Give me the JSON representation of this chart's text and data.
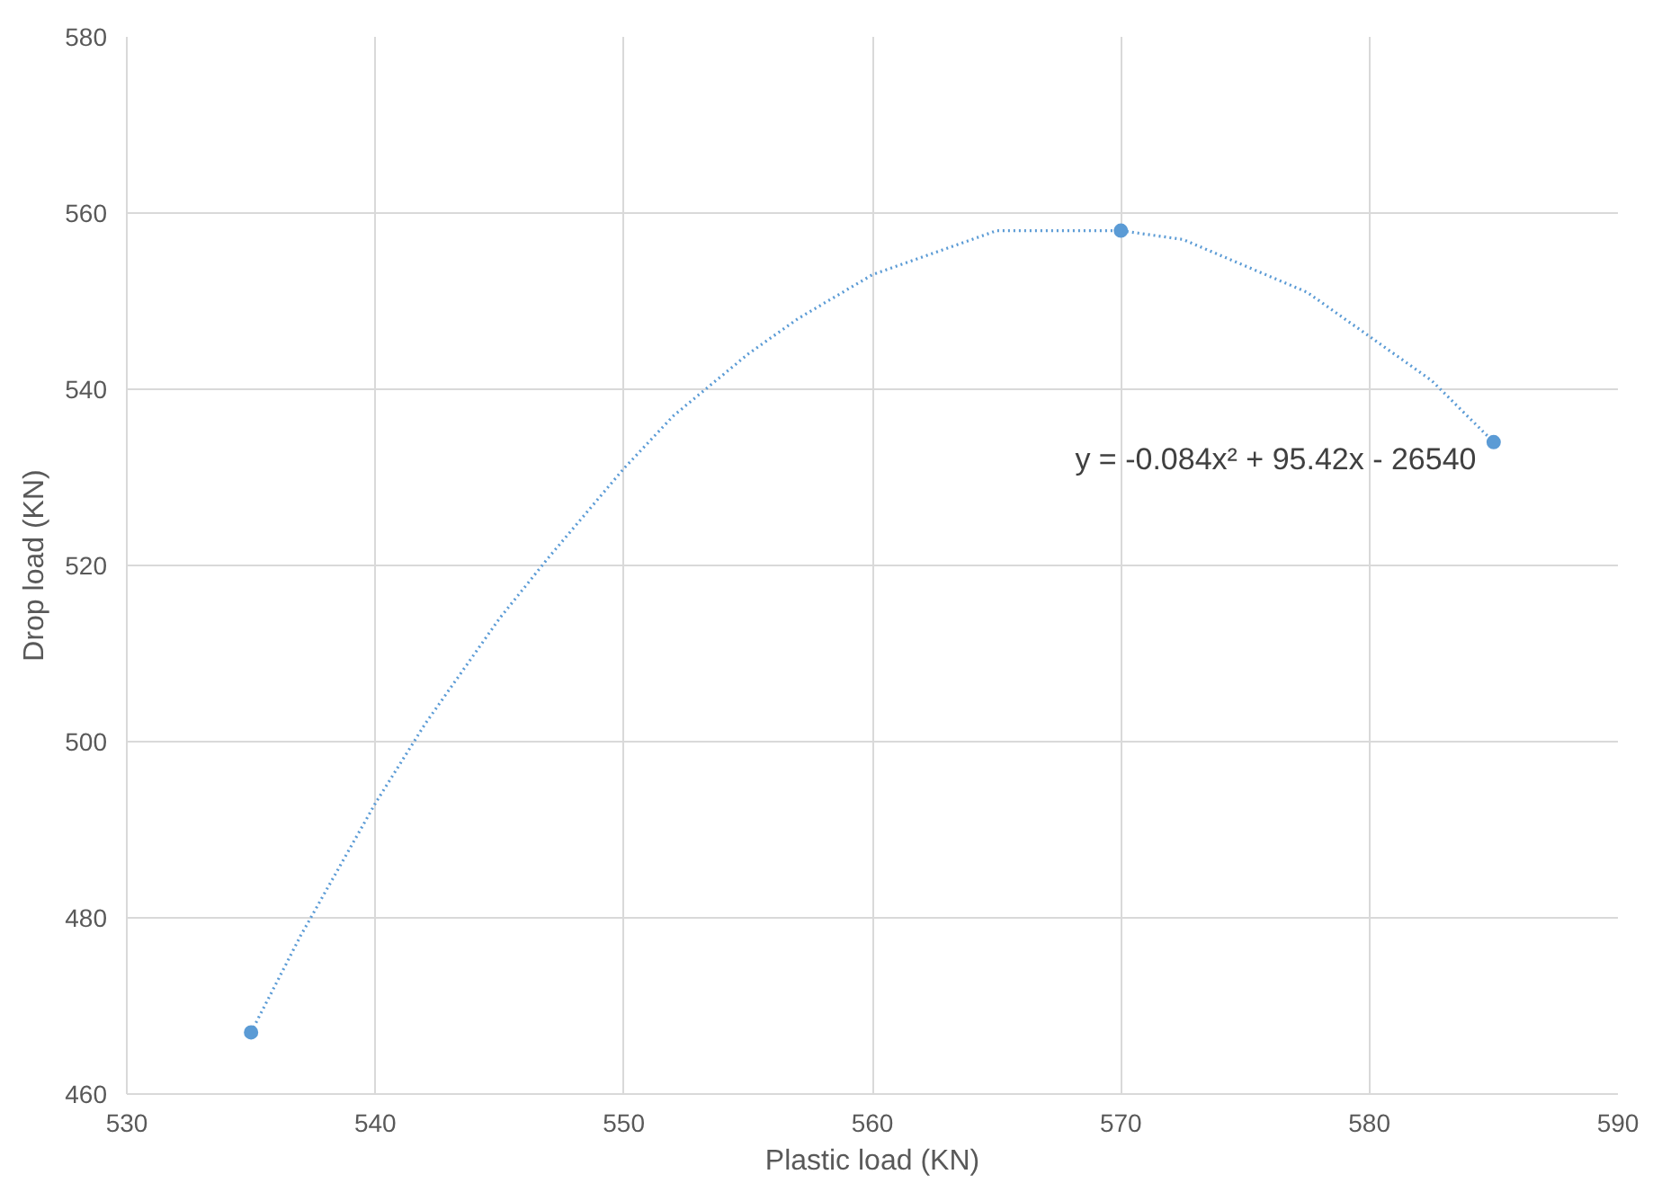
{
  "chart_data": {
    "type": "scatter",
    "xlabel": "Plastic load (KN)",
    "ylabel": "Drop load (KN)",
    "series": [
      {
        "color": "#5b9bd5",
        "x": [
          535,
          570,
          585
        ],
        "values": [
          467,
          558,
          534
        ],
        "marker": "circle"
      },
      {
        "type": "line",
        "color": "#5b9bd5",
        "line_style": "dotted",
        "marker": "none",
        "x": [
          535,
          537,
          540,
          542,
          545,
          547,
          550,
          552,
          555,
          557,
          560,
          562,
          565,
          568,
          570,
          572.5,
          575,
          577.5,
          580,
          582.5,
          585
        ],
        "values": [
          467,
          478,
          493,
          502,
          514,
          521,
          531,
          537,
          544,
          548,
          553,
          555,
          558,
          558,
          558,
          557,
          554,
          551,
          546,
          541,
          534
        ]
      }
    ],
    "annotations": [
      "y = -0.084x² + 95.42x - 26540"
    ],
    "xlim": [
      530,
      590
    ],
    "xticks": [
      530,
      540,
      550,
      560,
      570,
      580,
      590
    ],
    "ylim": [
      460,
      580
    ],
    "yticks": [
      460,
      480,
      500,
      520,
      540,
      560,
      580
    ],
    "grid": true
  }
}
